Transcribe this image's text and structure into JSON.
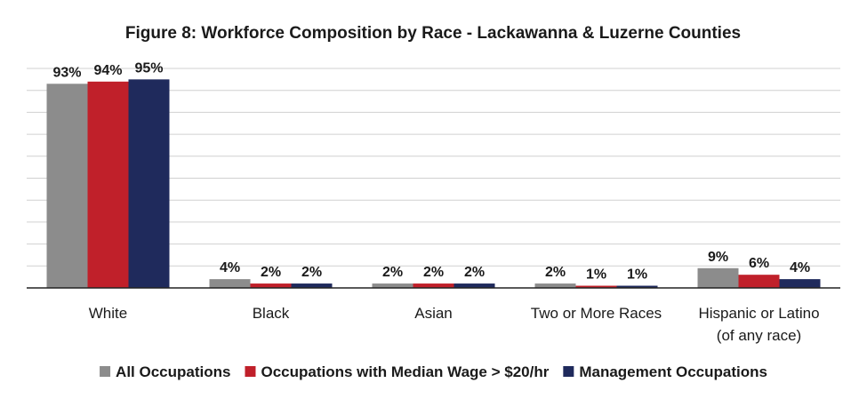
{
  "chart_data": {
    "type": "bar",
    "title": "Figure 8: Workforce Composition by Race - Lackawanna & Luzerne Counties",
    "categories": [
      "White",
      "Black",
      "Asian",
      "Two or More Races",
      "Hispanic or Latino (of any race)"
    ],
    "category_lines": [
      [
        "White"
      ],
      [
        "Black"
      ],
      [
        "Asian"
      ],
      [
        "Two or More Races"
      ],
      [
        "Hispanic or Latino",
        "(of any race)"
      ]
    ],
    "series": [
      {
        "name": "All Occupations",
        "color": "#8c8c8c",
        "values": [
          93,
          4,
          2,
          2,
          9
        ],
        "labels": [
          "93%",
          "4%",
          "2%",
          "2%",
          "9%"
        ]
      },
      {
        "name": "Occupations with Median Wage > $20/hr",
        "color": "#c0202a",
        "values": [
          94,
          2,
          2,
          1,
          6
        ],
        "labels": [
          "94%",
          "2%",
          "2%",
          "1%",
          "6%"
        ]
      },
      {
        "name": "Management Occupations",
        "color": "#1f2a5c",
        "values": [
          95,
          2,
          2,
          1,
          4
        ],
        "labels": [
          "95%",
          "2%",
          "2%",
          "1%",
          "4%"
        ]
      }
    ],
    "ylim": [
      0,
      100
    ],
    "grid": true,
    "legend_position": "bottom"
  }
}
